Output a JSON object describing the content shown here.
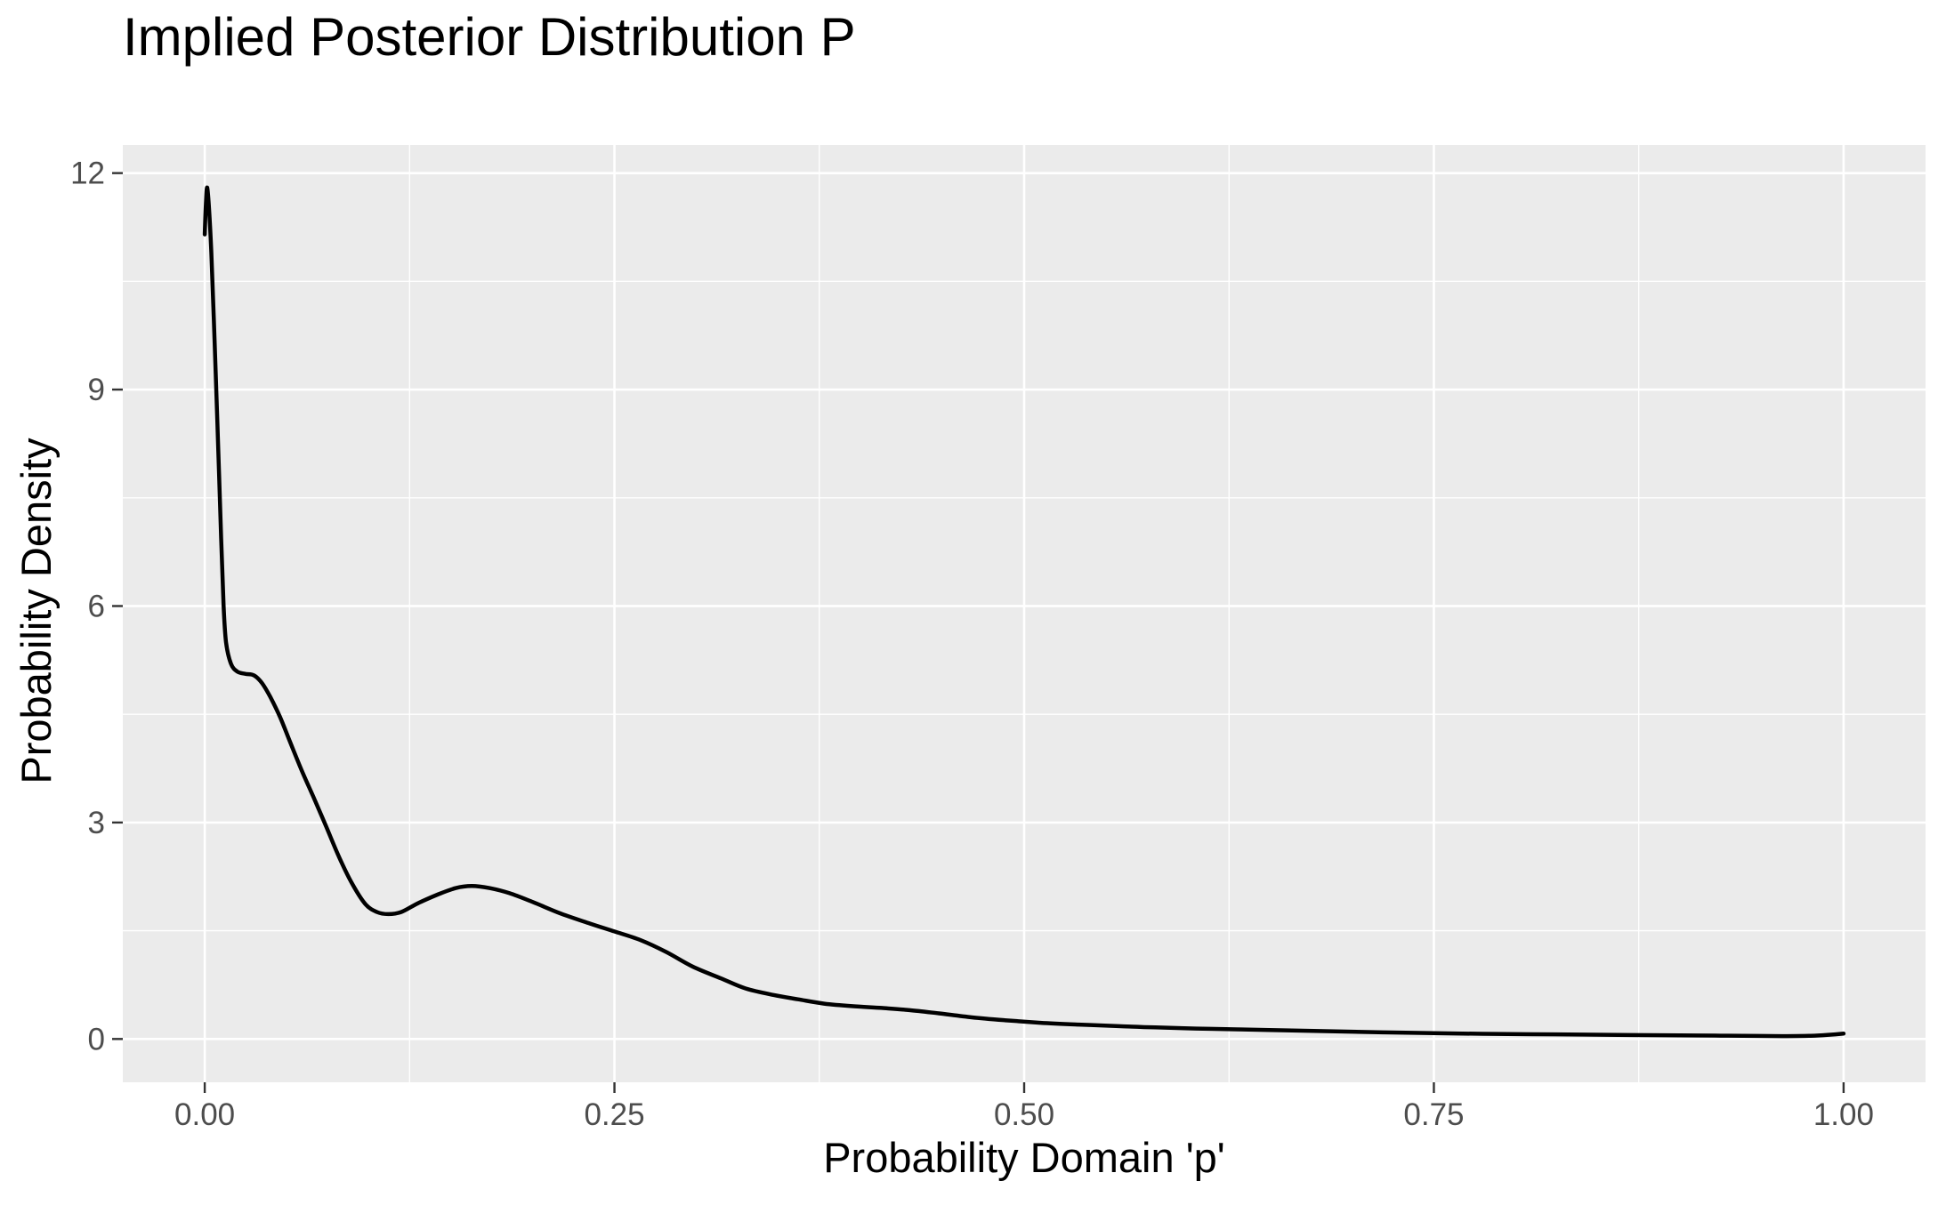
{
  "title": "Implied Posterior Distribution P",
  "chart_data": {
    "type": "line",
    "title": "Implied Posterior Distribution P",
    "xlabel": "Probability Domain 'p'",
    "ylabel": "Probability Density",
    "xlim": [
      -0.05,
      1.05
    ],
    "ylim": [
      -0.6,
      12.39
    ],
    "x_ticks": [
      0.0,
      0.25,
      0.5,
      0.75,
      1.0
    ],
    "x_tick_labels": [
      "0.00",
      "0.25",
      "0.50",
      "0.75",
      "1.00"
    ],
    "x_minor_ticks": [
      0.125,
      0.375,
      0.625,
      0.875
    ],
    "y_ticks": [
      0,
      3,
      6,
      9,
      12
    ],
    "y_tick_labels": [
      "0",
      "3",
      "6",
      "9",
      "12"
    ],
    "y_minor_ticks": [
      1.5,
      4.5,
      7.5,
      10.5
    ],
    "grid": "white major and minor gridlines on grey panel",
    "legend": "none",
    "colors": {
      "panel_background": "#EBEBEB",
      "gridline": "#FFFFFF",
      "tick_mark": "#333333",
      "tick_label": "#4D4D4D",
      "curve": "#000000",
      "page_background": "#FFFFFF"
    },
    "series": [
      {
        "name": "posterior density curve",
        "color": "#000000",
        "points": [
          [
            0.0,
            11.15
          ],
          [
            0.0008,
            11.62
          ],
          [
            0.0015,
            11.8
          ],
          [
            0.0025,
            11.55
          ],
          [
            0.004,
            10.9
          ],
          [
            0.006,
            9.7
          ],
          [
            0.008,
            8.35
          ],
          [
            0.01,
            6.95
          ],
          [
            0.0115,
            6.0
          ],
          [
            0.013,
            5.5
          ],
          [
            0.016,
            5.2
          ],
          [
            0.02,
            5.09
          ],
          [
            0.025,
            5.06
          ],
          [
            0.03,
            5.04
          ],
          [
            0.035,
            4.93
          ],
          [
            0.04,
            4.74
          ],
          [
            0.046,
            4.46
          ],
          [
            0.052,
            4.12
          ],
          [
            0.059,
            3.73
          ],
          [
            0.066,
            3.37
          ],
          [
            0.074,
            2.95
          ],
          [
            0.082,
            2.52
          ],
          [
            0.09,
            2.15
          ],
          [
            0.098,
            1.87
          ],
          [
            0.105,
            1.76
          ],
          [
            0.112,
            1.73
          ],
          [
            0.12,
            1.76
          ],
          [
            0.13,
            1.88
          ],
          [
            0.142,
            2.0
          ],
          [
            0.153,
            2.09
          ],
          [
            0.163,
            2.12
          ],
          [
            0.174,
            2.09
          ],
          [
            0.186,
            2.02
          ],
          [
            0.2,
            1.9
          ],
          [
            0.217,
            1.74
          ],
          [
            0.235,
            1.6
          ],
          [
            0.25,
            1.49
          ],
          [
            0.266,
            1.37
          ],
          [
            0.282,
            1.2
          ],
          [
            0.298,
            1.0
          ],
          [
            0.315,
            0.84
          ],
          [
            0.33,
            0.7
          ],
          [
            0.347,
            0.61
          ],
          [
            0.362,
            0.55
          ],
          [
            0.378,
            0.49
          ],
          [
            0.395,
            0.455
          ],
          [
            0.413,
            0.43
          ],
          [
            0.43,
            0.4
          ],
          [
            0.448,
            0.355
          ],
          [
            0.468,
            0.3
          ],
          [
            0.488,
            0.26
          ],
          [
            0.51,
            0.225
          ],
          [
            0.533,
            0.2
          ],
          [
            0.556,
            0.18
          ],
          [
            0.58,
            0.16
          ],
          [
            0.605,
            0.145
          ],
          [
            0.63,
            0.133
          ],
          [
            0.66,
            0.12
          ],
          [
            0.69,
            0.105
          ],
          [
            0.72,
            0.092
          ],
          [
            0.75,
            0.08
          ],
          [
            0.78,
            0.072
          ],
          [
            0.81,
            0.066
          ],
          [
            0.84,
            0.06
          ],
          [
            0.87,
            0.055
          ],
          [
            0.9,
            0.05
          ],
          [
            0.925,
            0.046
          ],
          [
            0.948,
            0.042
          ],
          [
            0.965,
            0.04
          ],
          [
            0.98,
            0.045
          ],
          [
            0.99,
            0.057
          ],
          [
            1.0,
            0.075
          ]
        ]
      }
    ]
  }
}
